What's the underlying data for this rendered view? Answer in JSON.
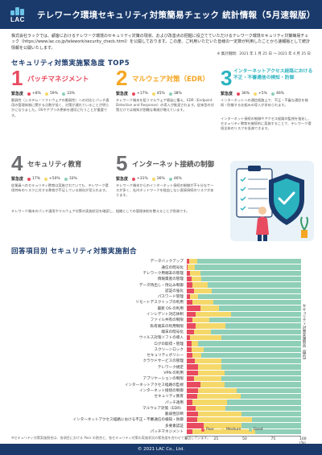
{
  "header": {
    "logo_text": "LAC",
    "title": "テレワーク環境セキュリティ対策簡易チェック 統計情報（5月速報版）"
  },
  "intro": {
    "text": "株式会社ラックでは、顧客におけるテレワーク環境のセキュリティ対策の現状、および改善点の把握に役立てていただけるテレワーク環境セキュリティ対策簡易チェック（https://www.lac.co.jp/telework/security_check.html）を公開しております。この度、ご利用いただいた皆様の一定数が利用したことから速報版として統計情報を公開いたします。",
    "survey_period": "※ 集計期間：2021 年 1 月 25 日 ～ 2021 年 4 月 25 日"
  },
  "top5": {
    "section_title": "セキュリティ対策実施緊急度 TOP5",
    "urgency_key": "緊急度",
    "items": [
      {
        "rank": "1",
        "label": "パッチマネジメント",
        "urgency": [
          "+8%",
          "59%",
          "33%"
        ],
        "desc": "脆弱性（システム・ソフトウェアの脆弱性）への対応とパッチ適用の管理体制に関する点数が低く、対策が遅れていることが明らかになりました。OSやアプリの更新を適切に行うことが重要です。"
      },
      {
        "rank": "2",
        "label": "マルウェア対策（EDR）",
        "urgency": [
          "+17%",
          "45%",
          "38%"
        ],
        "desc": "テレワーク端末を狙うマルウェア感染に備え、EDR（Endpoint Detection and Response）の導入が推奨されます。従来型の対策だけでは検知が困難な脅威が増えています。"
      },
      {
        "rank": "3",
        "label": "インターネットアクセス経路における不正・不審通信の検知・防御",
        "urgency": [
          "36%",
          "+5%",
          "46%"
        ],
        "desc": "インターネットへの通信経路上で、不正・不審な通信を検知・防御する仕組みの導入が求められます。"
      },
      {
        "rank": "4",
        "label": "セキュリティ教育",
        "urgency": [
          "17%",
          "+50%",
          "33%"
        ],
        "desc": "従業員へのセキュリティ教育は実施されていても、テレワーク環境特有のリスクに対する教育が不足している傾向が見られます。"
      },
      {
        "rank": "5",
        "label": "インターネット接続の制御",
        "urgency": [
          "+31%",
          "36%",
          "46%"
        ],
        "desc": "テレワーク端末からのインターネット接続の制御が不十分なケースが多く、社内ネットワークを経由しない直接接続のリスクがあります。"
      }
    ],
    "extra_left": "テレワーク端末のパッチ適用やマルウェア対策の実施状況を確認し、組織としての管理体制を整えることが急務です。",
    "extra_right": "インターネット接続の制御やアクセス経路の監視を強化し、セキュリティ教育を継続的に実施することで、テレワーク環境全体のリスクを低減できます。"
  },
  "colors": {
    "navy": "#1a3a6b",
    "rank1": "#e84a5f",
    "rank2": "#f5a623",
    "rank3": "#2bb3c0",
    "rank4": "#6d6e71",
    "rank5": "#6d6e71",
    "poor": "#e84a5f",
    "medium": "#f5d86a",
    "good": "#8fcfb8"
  },
  "chart_section_title": "回答項目別 セキュリティ対策実施割合",
  "chart_data": {
    "type": "bar",
    "orientation": "horizontal-stacked",
    "series_names": [
      "Poor",
      "Medium",
      "Good"
    ],
    "categories": [
      "データバックアップ",
      "通信の暗号化",
      "テレワーク用端末の管理",
      "情報資産の管理",
      "データ持出し・持込み制御",
      "認証の強化",
      "パスワード管理",
      "リモートデスクトップの利用",
      "最新 OS の利用",
      "インシデント対応体制",
      "ファイル共有の制限",
      "私有端末の利用制限",
      "端末の暗号化",
      "ウイルス対策ソフトの導入",
      "ログの取得・管理",
      "スクリーンロック",
      "セキュリティポリシー",
      "クラウドサービスの管理",
      "テレワーク規定",
      "VPN の利用",
      "アプリケーションの制限",
      "インターネットアクセス経路の監視",
      "インターネット接続の制御",
      "セキュリティ教育",
      "パッチ適用",
      "マルウェア対策（EDR）",
      "脆弱性診断",
      "インターネットアクセス経路における不正・不審通信の検知・防御",
      "多要素認証",
      "パッチマネジメント"
    ],
    "values_poor": [
      2,
      1,
      3,
      4,
      5,
      6,
      3,
      5,
      12,
      8,
      5,
      8,
      6,
      3,
      4,
      4,
      5,
      7,
      10,
      10,
      6,
      12,
      10,
      9,
      5,
      8,
      10,
      9,
      15,
      5
    ],
    "values_medium": [
      7,
      6,
      9,
      9,
      13,
      16,
      7,
      18,
      16,
      31,
      15,
      26,
      15,
      27,
      6,
      11,
      8,
      23,
      20,
      23,
      24,
      21,
      34,
      38,
      30,
      26,
      38,
      48,
      33,
      55
    ],
    "values_good": [
      91,
      93,
      88,
      87,
      82,
      78,
      90,
      77,
      72,
      61,
      80,
      66,
      79,
      70,
      90,
      85,
      87,
      70,
      70,
      67,
      70,
      67,
      56,
      53,
      65,
      66,
      52,
      43,
      52,
      40
    ],
    "xlim": [
      0,
      100
    ],
    "xlabel": "100 (%)",
    "x_ticks": [
      "0",
      "25",
      "50",
      "75",
      "100 (%)"
    ],
    "legend_placement": "bottom-right",
    "side_label": "セキュリティ対策実施割合（順位）"
  },
  "footnote": "※セキュリティ対策実施割合は、各項目における Poor の割合と、各セキュリティ対策の実施状況の緊急度を合わせて算出しています。",
  "footer": "© 2021 LAC Co., Ltd."
}
